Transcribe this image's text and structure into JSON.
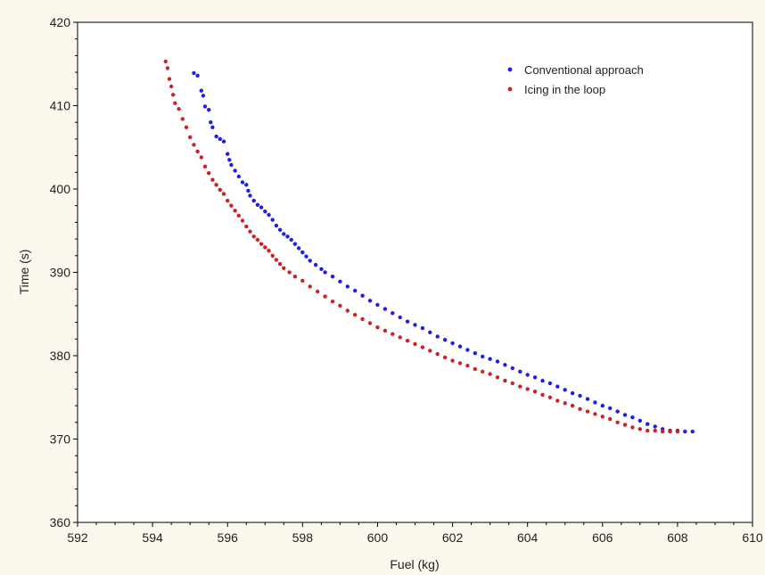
{
  "chart_data": {
    "type": "scatter",
    "title": "",
    "xlabel": "Fuel (kg)",
    "ylabel": "Time (s)",
    "xlim": [
      592,
      610
    ],
    "ylim": [
      360,
      420
    ],
    "xticks": [
      "592",
      "594",
      "596",
      "598",
      "600",
      "602",
      "604",
      "606",
      "608",
      "610"
    ],
    "yticks": [
      "360",
      "370",
      "380",
      "390",
      "400",
      "410",
      "420"
    ],
    "grid": false,
    "legend_position": "top-right",
    "series": [
      {
        "name": "Conventional approach",
        "color": "#1f1fe6",
        "points": [
          [
            595.1,
            413.9
          ],
          [
            595.2,
            413.6
          ],
          [
            595.3,
            411.8
          ],
          [
            595.35,
            411.2
          ],
          [
            595.4,
            409.9
          ],
          [
            595.5,
            409.5
          ],
          [
            595.55,
            408.0
          ],
          [
            595.6,
            407.4
          ],
          [
            595.7,
            406.3
          ],
          [
            595.8,
            406.0
          ],
          [
            595.9,
            405.7
          ],
          [
            596.0,
            404.2
          ],
          [
            596.05,
            403.5
          ],
          [
            596.1,
            402.9
          ],
          [
            596.2,
            402.2
          ],
          [
            596.3,
            401.5
          ],
          [
            596.4,
            400.8
          ],
          [
            596.5,
            400.5
          ],
          [
            596.55,
            399.8
          ],
          [
            596.6,
            399.2
          ],
          [
            596.7,
            398.6
          ],
          [
            596.8,
            398.1
          ],
          [
            596.9,
            397.8
          ],
          [
            597.0,
            397.3
          ],
          [
            597.1,
            396.9
          ],
          [
            597.2,
            396.3
          ],
          [
            597.3,
            395.6
          ],
          [
            597.4,
            395.1
          ],
          [
            597.5,
            394.6
          ],
          [
            597.6,
            394.3
          ],
          [
            597.7,
            393.9
          ],
          [
            597.8,
            393.4
          ],
          [
            597.9,
            392.9
          ],
          [
            598.0,
            392.4
          ],
          [
            598.1,
            391.9
          ],
          [
            598.2,
            391.4
          ],
          [
            598.35,
            390.9
          ],
          [
            598.5,
            390.4
          ],
          [
            598.6,
            390.0
          ],
          [
            598.8,
            389.5
          ],
          [
            599.0,
            388.9
          ],
          [
            599.2,
            388.3
          ],
          [
            599.4,
            387.8
          ],
          [
            599.6,
            387.2
          ],
          [
            599.8,
            386.6
          ],
          [
            600.0,
            386.1
          ],
          [
            600.2,
            385.6
          ],
          [
            600.4,
            385.1
          ],
          [
            600.6,
            384.6
          ],
          [
            600.8,
            384.1
          ],
          [
            601.0,
            383.7
          ],
          [
            601.2,
            383.3
          ],
          [
            601.4,
            382.8
          ],
          [
            601.6,
            382.3
          ],
          [
            601.8,
            381.9
          ],
          [
            602.0,
            381.5
          ],
          [
            602.2,
            381.1
          ],
          [
            602.4,
            380.7
          ],
          [
            602.6,
            380.3
          ],
          [
            602.8,
            379.9
          ],
          [
            603.0,
            379.6
          ],
          [
            603.2,
            379.3
          ],
          [
            603.4,
            378.9
          ],
          [
            603.6,
            378.5
          ],
          [
            603.8,
            378.1
          ],
          [
            604.0,
            377.7
          ],
          [
            604.2,
            377.4
          ],
          [
            604.4,
            377.0
          ],
          [
            604.6,
            376.7
          ],
          [
            604.8,
            376.3
          ],
          [
            605.0,
            375.9
          ],
          [
            605.2,
            375.5
          ],
          [
            605.4,
            375.2
          ],
          [
            605.6,
            374.8
          ],
          [
            605.8,
            374.4
          ],
          [
            606.0,
            374.0
          ],
          [
            606.2,
            373.7
          ],
          [
            606.4,
            373.3
          ],
          [
            606.6,
            372.9
          ],
          [
            606.8,
            372.6
          ],
          [
            607.0,
            372.2
          ],
          [
            607.2,
            371.8
          ],
          [
            607.4,
            371.5
          ],
          [
            607.6,
            371.2
          ],
          [
            607.8,
            371.0
          ],
          [
            608.0,
            371.0
          ],
          [
            608.2,
            370.9
          ],
          [
            608.4,
            370.9
          ]
        ]
      },
      {
        "name": "Icing in the loop",
        "color": "#cc2222",
        "points": [
          [
            594.35,
            415.3
          ],
          [
            594.4,
            414.5
          ],
          [
            594.45,
            413.2
          ],
          [
            594.5,
            412.3
          ],
          [
            594.55,
            411.3
          ],
          [
            594.6,
            410.3
          ],
          [
            594.7,
            409.6
          ],
          [
            594.8,
            408.4
          ],
          [
            594.9,
            407.4
          ],
          [
            595.0,
            406.2
          ],
          [
            595.1,
            405.3
          ],
          [
            595.2,
            404.5
          ],
          [
            595.3,
            403.8
          ],
          [
            595.4,
            402.7
          ],
          [
            595.5,
            401.9
          ],
          [
            595.6,
            401.1
          ],
          [
            595.7,
            400.5
          ],
          [
            595.8,
            399.9
          ],
          [
            595.9,
            399.4
          ],
          [
            596.0,
            398.6
          ],
          [
            596.1,
            398.0
          ],
          [
            596.2,
            397.4
          ],
          [
            596.3,
            396.8
          ],
          [
            596.4,
            396.2
          ],
          [
            596.5,
            395.5
          ],
          [
            596.6,
            394.9
          ],
          [
            596.7,
            394.3
          ],
          [
            596.8,
            393.9
          ],
          [
            596.9,
            393.4
          ],
          [
            597.0,
            393.0
          ],
          [
            597.1,
            392.6
          ],
          [
            597.2,
            392.0
          ],
          [
            597.3,
            391.5
          ],
          [
            597.4,
            391.0
          ],
          [
            597.5,
            390.5
          ],
          [
            597.65,
            390.0
          ],
          [
            597.8,
            389.5
          ],
          [
            598.0,
            389.0
          ],
          [
            598.2,
            388.3
          ],
          [
            598.4,
            387.7
          ],
          [
            598.6,
            387.1
          ],
          [
            598.8,
            386.5
          ],
          [
            599.0,
            386.0
          ],
          [
            599.2,
            385.4
          ],
          [
            599.4,
            384.9
          ],
          [
            599.6,
            384.4
          ],
          [
            599.8,
            383.9
          ],
          [
            600.0,
            383.4
          ],
          [
            600.2,
            383.0
          ],
          [
            600.4,
            382.6
          ],
          [
            600.6,
            382.2
          ],
          [
            600.8,
            381.8
          ],
          [
            601.0,
            381.4
          ],
          [
            601.2,
            381.0
          ],
          [
            601.4,
            380.6
          ],
          [
            601.6,
            380.2
          ],
          [
            601.8,
            379.8
          ],
          [
            602.0,
            379.4
          ],
          [
            602.2,
            379.1
          ],
          [
            602.4,
            378.8
          ],
          [
            602.6,
            378.4
          ],
          [
            602.8,
            378.1
          ],
          [
            603.0,
            377.8
          ],
          [
            603.2,
            377.4
          ],
          [
            603.4,
            377.0
          ],
          [
            603.6,
            376.7
          ],
          [
            603.8,
            376.3
          ],
          [
            604.0,
            376.0
          ],
          [
            604.2,
            375.7
          ],
          [
            604.4,
            375.3
          ],
          [
            604.6,
            375.0
          ],
          [
            604.8,
            374.6
          ],
          [
            605.0,
            374.3
          ],
          [
            605.2,
            374.0
          ],
          [
            605.4,
            373.6
          ],
          [
            605.6,
            373.3
          ],
          [
            605.8,
            373.0
          ],
          [
            606.0,
            372.7
          ],
          [
            606.2,
            372.4
          ],
          [
            606.4,
            372.0
          ],
          [
            606.6,
            371.7
          ],
          [
            606.8,
            371.4
          ],
          [
            607.0,
            371.2
          ],
          [
            607.2,
            371.0
          ],
          [
            607.4,
            371.0
          ],
          [
            607.6,
            370.9
          ],
          [
            607.8,
            370.9
          ],
          [
            608.0,
            370.9
          ]
        ]
      }
    ]
  }
}
